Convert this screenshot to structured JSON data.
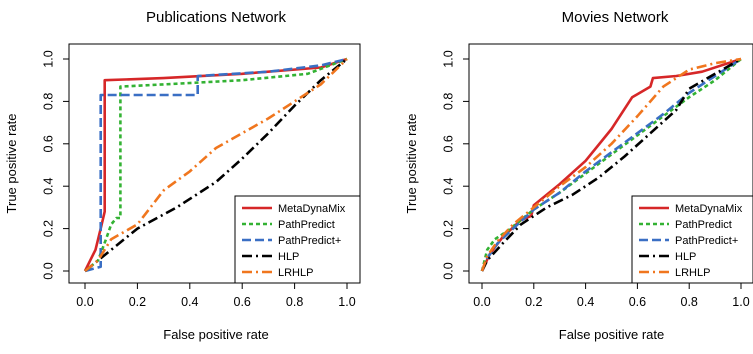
{
  "chart_data": [
    {
      "type": "line",
      "title": "Publications Network",
      "xlabel": "False positive rate",
      "ylabel": "True positive rate",
      "xlim": [
        0,
        1
      ],
      "ylim": [
        0,
        1
      ],
      "xticks": [
        "0.0",
        "0.2",
        "0.4",
        "0.6",
        "0.8",
        "1.0"
      ],
      "yticks": [
        "0.0",
        "0.2",
        "0.4",
        "0.6",
        "0.8",
        "1.0"
      ],
      "grid": false,
      "legend_position": "bottom-right",
      "series": [
        {
          "name": "MetaDynaMix",
          "color": "#d62728",
          "dash": "solid",
          "x": [
            0,
            0.02,
            0.04,
            0.06,
            0.075,
            0.075,
            0.3,
            0.6,
            0.9,
            1.0
          ],
          "y": [
            0,
            0.05,
            0.1,
            0.2,
            0.28,
            0.9,
            0.91,
            0.93,
            0.96,
            1.0
          ]
        },
        {
          "name": "PathPredict",
          "color": "#33b233",
          "dash": "dotted",
          "x": [
            0,
            0.05,
            0.08,
            0.1,
            0.12,
            0.135,
            0.135,
            0.3,
            0.6,
            0.85,
            1.0
          ],
          "y": [
            0,
            0.05,
            0.15,
            0.22,
            0.25,
            0.25,
            0.87,
            0.88,
            0.9,
            0.93,
            1.0
          ]
        },
        {
          "name": "PathPredict+",
          "color": "#3a6fc4",
          "dash": "dashed",
          "x": [
            0,
            0.06,
            0.06,
            0.43,
            0.43,
            0.7,
            0.9,
            1.0
          ],
          "y": [
            0,
            0.02,
            0.83,
            0.83,
            0.92,
            0.94,
            0.97,
            1.0
          ]
        },
        {
          "name": "HLP",
          "color": "#000000",
          "dash": "dashdot",
          "x": [
            0,
            0.1,
            0.2,
            0.35,
            0.5,
            0.6,
            0.7,
            0.8,
            0.9,
            1.0
          ],
          "y": [
            0,
            0.1,
            0.2,
            0.3,
            0.42,
            0.53,
            0.65,
            0.78,
            0.9,
            1.0
          ]
        },
        {
          "name": "LRHLP",
          "color": "#f0761e",
          "dash": "dashdot",
          "x": [
            0,
            0.05,
            0.1,
            0.2,
            0.3,
            0.4,
            0.5,
            0.6,
            0.7,
            0.8,
            0.9,
            1.0
          ],
          "y": [
            0,
            0.05,
            0.15,
            0.22,
            0.38,
            0.47,
            0.58,
            0.65,
            0.72,
            0.8,
            0.88,
            1.0
          ]
        }
      ]
    },
    {
      "type": "line",
      "title": "Movies Network",
      "xlabel": "False positive rate",
      "ylabel": "True positive rate",
      "xlim": [
        0,
        1
      ],
      "ylim": [
        0,
        1
      ],
      "xticks": [
        "0.0",
        "0.2",
        "0.4",
        "0.6",
        "0.8",
        "1.0"
      ],
      "yticks": [
        "0.0",
        "0.2",
        "0.4",
        "0.6",
        "0.8",
        "1.0"
      ],
      "grid": false,
      "legend_position": "bottom-right",
      "series": [
        {
          "name": "MetaDynaMix",
          "color": "#d62728",
          "dash": "solid",
          "x": [
            0,
            0.03,
            0.08,
            0.15,
            0.19,
            0.2,
            0.3,
            0.4,
            0.5,
            0.58,
            0.65,
            0.66,
            0.75,
            0.85,
            1.0
          ],
          "y": [
            0,
            0.08,
            0.16,
            0.24,
            0.26,
            0.31,
            0.41,
            0.52,
            0.67,
            0.82,
            0.87,
            0.91,
            0.92,
            0.94,
            1.0
          ]
        },
        {
          "name": "PathPredict",
          "color": "#33b233",
          "dash": "dotted",
          "x": [
            0,
            0.02,
            0.05,
            0.1,
            0.2,
            0.3,
            0.4,
            0.5,
            0.6,
            0.7,
            0.8,
            0.9,
            1.0
          ],
          "y": [
            0,
            0.1,
            0.15,
            0.19,
            0.29,
            0.37,
            0.46,
            0.55,
            0.64,
            0.73,
            0.82,
            0.9,
            1.0
          ]
        },
        {
          "name": "PathPredict+",
          "color": "#3a6fc4",
          "dash": "dashed",
          "x": [
            0,
            0.02,
            0.06,
            0.12,
            0.2,
            0.3,
            0.4,
            0.5,
            0.6,
            0.7,
            0.8,
            0.9,
            1.0
          ],
          "y": [
            0,
            0.06,
            0.13,
            0.2,
            0.29,
            0.37,
            0.47,
            0.56,
            0.65,
            0.74,
            0.84,
            0.92,
            1.0
          ]
        },
        {
          "name": "HLP",
          "color": "#000000",
          "dash": "dashdot",
          "x": [
            0,
            0.02,
            0.08,
            0.15,
            0.25,
            0.35,
            0.45,
            0.55,
            0.65,
            0.75,
            0.8,
            0.9,
            1.0
          ],
          "y": [
            0,
            0.05,
            0.13,
            0.22,
            0.3,
            0.36,
            0.44,
            0.54,
            0.65,
            0.76,
            0.86,
            0.93,
            1.0
          ]
        },
        {
          "name": "LRHLP",
          "color": "#f0761e",
          "dash": "dashdot",
          "x": [
            0,
            0.02,
            0.06,
            0.12,
            0.2,
            0.3,
            0.4,
            0.5,
            0.6,
            0.7,
            0.8,
            0.9,
            1.0
          ],
          "y": [
            0,
            0.07,
            0.14,
            0.22,
            0.3,
            0.4,
            0.49,
            0.6,
            0.73,
            0.87,
            0.95,
            0.98,
            1.0
          ]
        }
      ]
    }
  ]
}
